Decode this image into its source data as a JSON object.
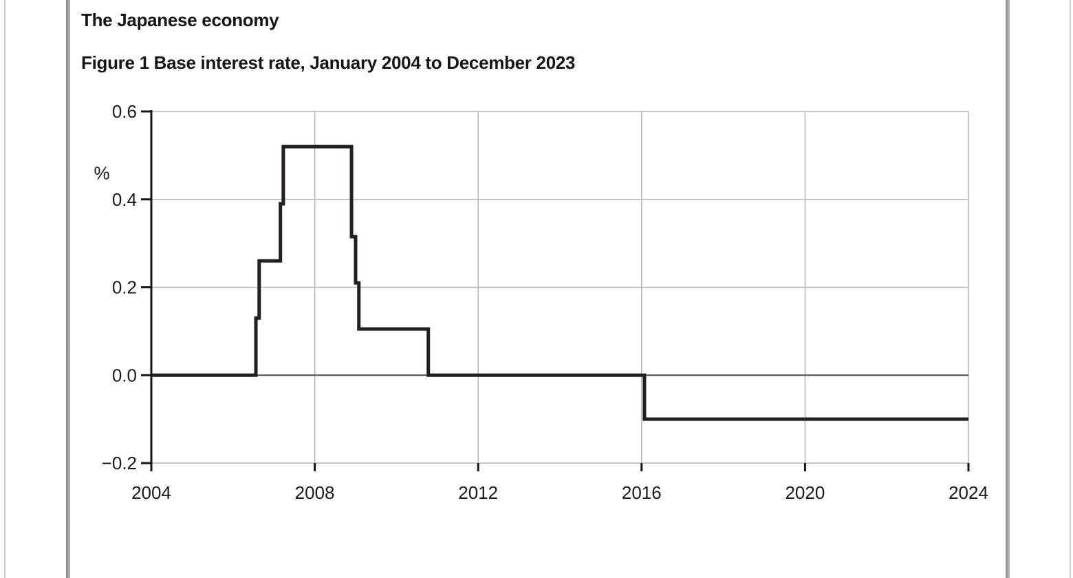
{
  "document": {
    "title": "The Japanese economy",
    "figure_caption": "Figure 1 Base interest rate, January 2004 to December 2023"
  },
  "chart_data": {
    "type": "line",
    "line_style": "step-post",
    "title": "Figure 1 Base interest rate, January 2004 to December 2023",
    "xlabel": "",
    "ylabel": "%",
    "xlim": [
      2004,
      2024
    ],
    "ylim": [
      -0.2,
      0.6
    ],
    "grid": true,
    "legend": "none",
    "x_ticks": {
      "values": [
        2004,
        2008,
        2012,
        2016,
        2020,
        2024
      ],
      "labels": [
        "2004",
        "2008",
        "2012",
        "2016",
        "2020",
        "2024"
      ]
    },
    "y_ticks": {
      "values": [
        0.6,
        0.4,
        0.2,
        0,
        -0.2
      ],
      "labels": [
        "0.6",
        "0.4",
        "0.2",
        "0.0",
        "−0.2"
      ]
    },
    "series": [
      {
        "name": "Base interest rate (%)",
        "step_points": [
          [
            2004.0,
            0.0
          ],
          [
            2006.56,
            0.13
          ],
          [
            2006.64,
            0.26
          ],
          [
            2007.16,
            0.39
          ],
          [
            2007.23,
            0.52
          ],
          [
            2008.9,
            0.315
          ],
          [
            2009.0,
            0.21
          ],
          [
            2009.08,
            0.105
          ],
          [
            2010.78,
            0.0
          ],
          [
            2016.07,
            -0.1
          ]
        ],
        "x_end": 2024.0
      }
    ],
    "colors": {
      "line": "#231f20",
      "grid": "#b4b4b4",
      "zero_line": "#4b4b4b",
      "axis": "#161616",
      "text": "#1a1a1a"
    }
  }
}
